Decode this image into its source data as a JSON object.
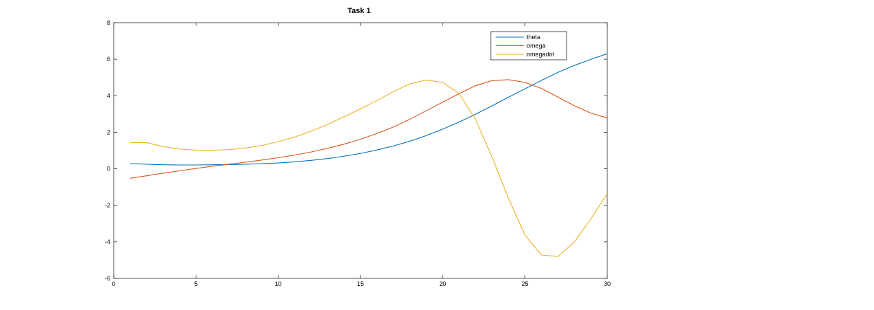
{
  "chart_data": {
    "type": "line",
    "title": "Task 1",
    "xlabel": "",
    "ylabel": "",
    "xlim": [
      0,
      30
    ],
    "ylim": [
      -6,
      8
    ],
    "xticks": [
      0,
      5,
      10,
      15,
      20,
      25,
      30
    ],
    "yticks": [
      -6,
      -4,
      -2,
      0,
      2,
      4,
      6,
      8
    ],
    "grid": false,
    "legend_position": "top-right",
    "x": [
      1,
      2,
      3,
      4,
      5,
      6,
      7,
      8,
      9,
      10,
      11,
      12,
      13,
      14,
      15,
      16,
      17,
      18,
      19,
      20,
      21,
      22,
      23,
      24,
      25,
      26,
      27,
      28,
      29,
      30
    ],
    "series": [
      {
        "name": "theta",
        "color": "#0072bd",
        "values": [
          0.29,
          0.25,
          0.22,
          0.21,
          0.21,
          0.22,
          0.23,
          0.25,
          0.28,
          0.32,
          0.38,
          0.46,
          0.56,
          0.69,
          0.84,
          1.03,
          1.25,
          1.51,
          1.82,
          2.17,
          2.56,
          2.99,
          3.45,
          3.92,
          4.38,
          4.84,
          5.28,
          5.66,
          5.99,
          6.3
        ]
      },
      {
        "name": "omega",
        "color": "#d95319",
        "values": [
          -0.52,
          -0.38,
          -0.24,
          -0.11,
          0.02,
          0.14,
          0.25,
          0.36,
          0.48,
          0.61,
          0.75,
          0.92,
          1.12,
          1.35,
          1.62,
          1.93,
          2.29,
          2.71,
          3.18,
          3.65,
          4.12,
          4.55,
          4.83,
          4.88,
          4.73,
          4.4,
          3.93,
          3.45,
          3.05,
          2.78
        ]
      },
      {
        "name": "omegadot",
        "color": "#edb120",
        "values": [
          1.43,
          1.43,
          1.22,
          1.08,
          1.02,
          1.01,
          1.05,
          1.14,
          1.28,
          1.48,
          1.74,
          2.06,
          2.43,
          2.85,
          3.28,
          3.74,
          4.22,
          4.65,
          4.86,
          4.73,
          4.12,
          2.69,
          0.64,
          -1.63,
          -3.63,
          -4.72,
          -4.8,
          -4.01,
          -2.75,
          -1.35
        ]
      }
    ]
  }
}
